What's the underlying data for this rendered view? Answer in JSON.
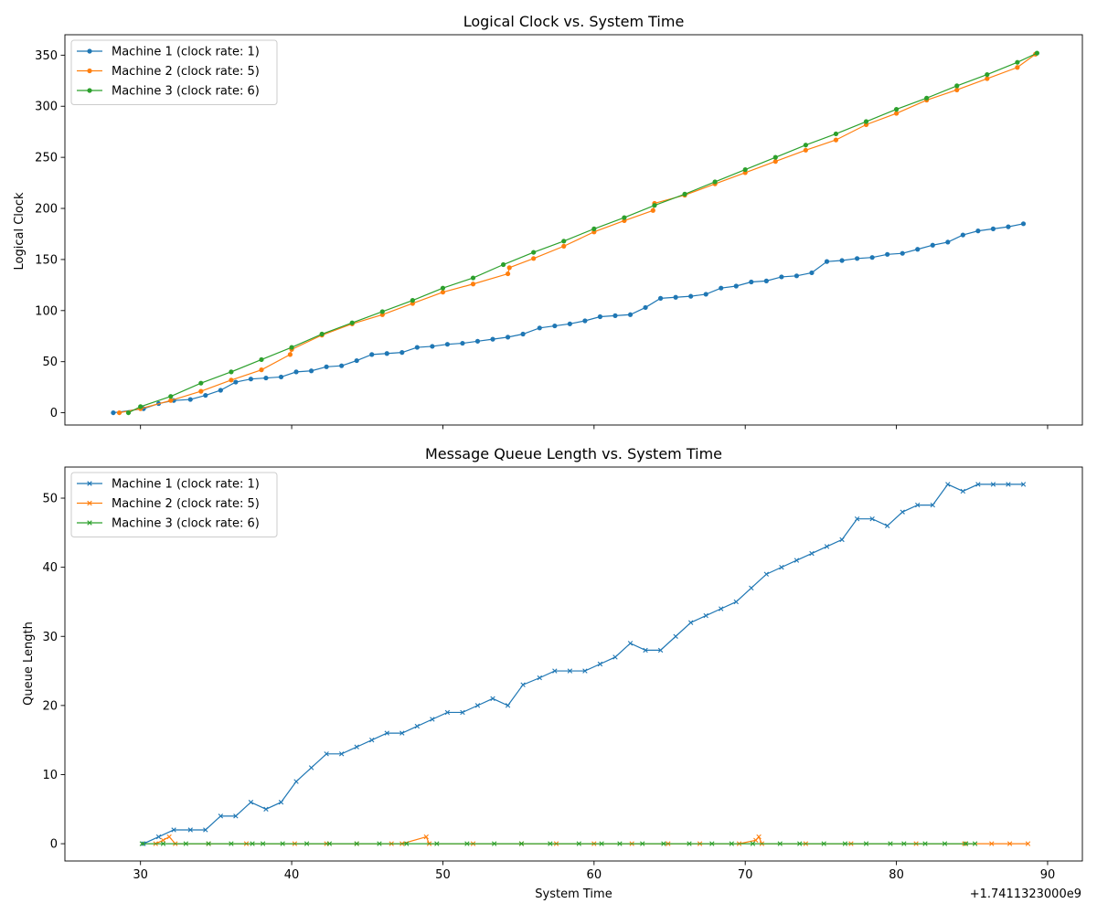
{
  "chart_data": [
    {
      "type": "line",
      "title": "Logical Clock vs. System Time",
      "xlabel": "",
      "ylabel": "Logical Clock",
      "xlim": [
        25,
        92.3
      ],
      "ylim": [
        -12,
        370
      ],
      "xticks": [
        30,
        40,
        50,
        60,
        70,
        80,
        90
      ],
      "xtick_labels_visible": false,
      "yticks": [
        0,
        50,
        100,
        150,
        200,
        250,
        300,
        350
      ],
      "grid": false,
      "legend_position": "top-left",
      "marker": "circle",
      "series": [
        {
          "name": "Machine 1 (clock rate: 1)",
          "color": "#1f77b4",
          "points": [
            [
              28.2,
              0
            ],
            [
              30.2,
              4
            ],
            [
              31.2,
              9
            ],
            [
              32.2,
              12
            ],
            [
              33.3,
              13
            ],
            [
              34.3,
              17
            ],
            [
              35.3,
              22
            ],
            [
              36.3,
              30
            ],
            [
              37.3,
              33
            ],
            [
              38.3,
              34
            ],
            [
              39.3,
              35
            ],
            [
              40.3,
              40
            ],
            [
              41.3,
              41
            ],
            [
              42.3,
              45
            ],
            [
              43.3,
              46
            ],
            [
              44.3,
              51
            ],
            [
              45.3,
              57
            ],
            [
              46.3,
              58
            ],
            [
              47.3,
              59
            ],
            [
              48.3,
              64
            ],
            [
              49.3,
              65
            ],
            [
              50.3,
              67
            ],
            [
              51.3,
              68
            ],
            [
              52.3,
              70
            ],
            [
              53.3,
              72
            ],
            [
              54.3,
              74
            ],
            [
              55.3,
              77
            ],
            [
              56.4,
              83
            ],
            [
              57.4,
              85
            ],
            [
              58.4,
              87
            ],
            [
              59.4,
              90
            ],
            [
              60.4,
              94
            ],
            [
              61.4,
              95
            ],
            [
              62.4,
              96
            ],
            [
              63.4,
              103
            ],
            [
              64.4,
              112
            ],
            [
              65.4,
              113
            ],
            [
              66.4,
              114
            ],
            [
              67.4,
              116
            ],
            [
              68.4,
              122
            ],
            [
              69.4,
              124
            ],
            [
              70.4,
              128
            ],
            [
              71.4,
              129
            ],
            [
              72.4,
              133
            ],
            [
              73.4,
              134
            ],
            [
              74.4,
              137
            ],
            [
              75.4,
              148
            ],
            [
              76.4,
              149
            ],
            [
              77.4,
              151
            ],
            [
              78.4,
              152
            ],
            [
              79.4,
              155
            ],
            [
              80.4,
              156
            ],
            [
              81.4,
              160
            ],
            [
              82.4,
              164
            ],
            [
              83.4,
              167
            ],
            [
              84.4,
              174
            ],
            [
              85.4,
              178
            ],
            [
              86.4,
              180
            ],
            [
              87.4,
              182
            ],
            [
              88.4,
              185
            ]
          ]
        },
        {
          "name": "Machine 2 (clock rate: 5)",
          "color": "#ff7f0e",
          "points": [
            [
              28.6,
              0
            ],
            [
              30,
              4
            ],
            [
              32,
              12
            ],
            [
              34,
              21
            ],
            [
              36,
              32
            ],
            [
              38,
              42
            ],
            [
              39.9,
              57
            ],
            [
              40,
              62
            ],
            [
              42,
              76
            ],
            [
              44,
              87
            ],
            [
              46,
              96
            ],
            [
              48,
              107
            ],
            [
              50,
              118
            ],
            [
              52,
              126
            ],
            [
              54.3,
              136
            ],
            [
              54.4,
              142
            ],
            [
              56,
              151
            ],
            [
              58,
              163
            ],
            [
              60,
              177
            ],
            [
              62,
              188
            ],
            [
              63.9,
              198
            ],
            [
              64,
              205
            ],
            [
              66,
              213
            ],
            [
              68,
              224
            ],
            [
              70,
              235
            ],
            [
              72,
              246
            ],
            [
              74,
              257
            ],
            [
              76,
              267
            ],
            [
              78,
              282
            ],
            [
              80,
              293
            ],
            [
              82,
              306
            ],
            [
              84,
              316
            ],
            [
              86,
              327
            ],
            [
              88,
              338
            ],
            [
              89.2,
              351
            ]
          ]
        },
        {
          "name": "Machine 3 (clock rate: 6)",
          "color": "#2ca02c",
          "points": [
            [
              29.2,
              0
            ],
            [
              30,
              6
            ],
            [
              32,
              16
            ],
            [
              34,
              29
            ],
            [
              36,
              40
            ],
            [
              38,
              52
            ],
            [
              40,
              64
            ],
            [
              42,
              77
            ],
            [
              44,
              88
            ],
            [
              46,
              99
            ],
            [
              48,
              110
            ],
            [
              50,
              122
            ],
            [
              52,
              132
            ],
            [
              54,
              145
            ],
            [
              56,
              157
            ],
            [
              58,
              168
            ],
            [
              60,
              180
            ],
            [
              62,
              191
            ],
            [
              64,
              203
            ],
            [
              66,
              214
            ],
            [
              68,
              226
            ],
            [
              70,
              238
            ],
            [
              72,
              250
            ],
            [
              74,
              262
            ],
            [
              76,
              273
            ],
            [
              78,
              285
            ],
            [
              80,
              297
            ],
            [
              82,
              308
            ],
            [
              84,
              320
            ],
            [
              86,
              331
            ],
            [
              88,
              343
            ],
            [
              89.3,
              352
            ]
          ]
        }
      ]
    },
    {
      "type": "line",
      "title": "Message Queue Length vs. System Time",
      "xlabel": "System Time",
      "ylabel": "Queue Length",
      "xlim": [
        25,
        92.3
      ],
      "ylim": [
        -2.5,
        54.5
      ],
      "xticks": [
        30,
        40,
        50,
        60,
        70,
        80,
        90
      ],
      "yticks": [
        0,
        10,
        20,
        30,
        40,
        50
      ],
      "x_offset_label": "+1.7411323000e9",
      "grid": false,
      "legend_position": "top-left",
      "marker": "x",
      "series": [
        {
          "name": "Machine 1 (clock rate: 1)",
          "color": "#1f77b4",
          "points": [
            [
              30.2,
              0
            ],
            [
              31.2,
              1
            ],
            [
              32.2,
              2
            ],
            [
              33.3,
              2
            ],
            [
              34.3,
              2
            ],
            [
              35.3,
              4
            ],
            [
              36.3,
              4
            ],
            [
              37.3,
              6
            ],
            [
              38.3,
              5
            ],
            [
              39.3,
              6
            ],
            [
              40.3,
              9
            ],
            [
              41.3,
              11
            ],
            [
              42.3,
              13
            ],
            [
              43.3,
              13
            ],
            [
              44.3,
              14
            ],
            [
              45.3,
              15
            ],
            [
              46.3,
              16
            ],
            [
              47.3,
              16
            ],
            [
              48.3,
              17
            ],
            [
              49.3,
              18
            ],
            [
              50.3,
              19
            ],
            [
              51.3,
              19
            ],
            [
              52.3,
              20
            ],
            [
              53.3,
              21
            ],
            [
              54.3,
              20
            ],
            [
              55.3,
              23
            ],
            [
              56.4,
              24
            ],
            [
              57.4,
              25
            ],
            [
              58.4,
              25
            ],
            [
              59.4,
              25
            ],
            [
              60.4,
              26
            ],
            [
              61.4,
              27
            ],
            [
              62.4,
              29
            ],
            [
              63.4,
              28
            ],
            [
              64.4,
              28
            ],
            [
              65.4,
              30
            ],
            [
              66.4,
              32
            ],
            [
              67.4,
              33
            ],
            [
              68.4,
              34
            ],
            [
              69.4,
              35
            ],
            [
              70.4,
              37
            ],
            [
              71.4,
              39
            ],
            [
              72.4,
              40
            ],
            [
              73.4,
              41
            ],
            [
              74.4,
              42
            ],
            [
              75.4,
              43
            ],
            [
              76.4,
              44
            ],
            [
              77.4,
              47
            ],
            [
              78.4,
              47
            ],
            [
              79.4,
              46
            ],
            [
              80.4,
              48
            ],
            [
              81.4,
              49
            ],
            [
              82.4,
              49
            ],
            [
              83.4,
              52
            ],
            [
              84.4,
              51
            ],
            [
              85.4,
              52
            ],
            [
              86.4,
              52
            ],
            [
              87.4,
              52
            ],
            [
              88.4,
              52
            ]
          ]
        },
        {
          "name": "Machine 2 (clock rate: 5)",
          "color": "#ff7f0e",
          "points": [
            [
              31,
              0
            ],
            [
              31.5,
              0.5
            ],
            [
              31.9,
              1
            ],
            [
              32.3,
              0
            ],
            [
              34.5,
              0
            ],
            [
              37,
              0
            ],
            [
              40.2,
              0
            ],
            [
              42.3,
              0
            ],
            [
              44.3,
              0
            ],
            [
              46.6,
              0
            ],
            [
              47.3,
              0
            ],
            [
              48.9,
              1
            ],
            [
              49.1,
              0
            ],
            [
              52,
              0
            ],
            [
              55.2,
              0
            ],
            [
              57.5,
              0
            ],
            [
              60,
              0
            ],
            [
              62.5,
              0
            ],
            [
              64.9,
              0
            ],
            [
              67,
              0
            ],
            [
              69.6,
              0
            ],
            [
              70.7,
              0.5
            ],
            [
              70.9,
              1
            ],
            [
              71.1,
              0
            ],
            [
              74,
              0
            ],
            [
              77,
              0
            ],
            [
              81.3,
              0
            ],
            [
              84.5,
              0
            ],
            [
              86.3,
              0
            ],
            [
              87.5,
              0
            ],
            [
              88.7,
              0
            ]
          ]
        },
        {
          "name": "Machine 3 (clock rate: 6)",
          "color": "#2ca02c",
          "points": [
            [
              30.1,
              0
            ],
            [
              31.5,
              0
            ],
            [
              33,
              0
            ],
            [
              34.5,
              0
            ],
            [
              36,
              0
            ],
            [
              37.4,
              0
            ],
            [
              38.1,
              0
            ],
            [
              39.4,
              0
            ],
            [
              41,
              0
            ],
            [
              42.5,
              0
            ],
            [
              44.3,
              0
            ],
            [
              45.8,
              0
            ],
            [
              47.6,
              0
            ],
            [
              49.6,
              0
            ],
            [
              51.6,
              0
            ],
            [
              53.4,
              0
            ],
            [
              55.2,
              0
            ],
            [
              57.1,
              0
            ],
            [
              59,
              0
            ],
            [
              60.5,
              0
            ],
            [
              61.7,
              0
            ],
            [
              63.2,
              0
            ],
            [
              64.6,
              0
            ],
            [
              66.3,
              0
            ],
            [
              67.8,
              0
            ],
            [
              69.1,
              0
            ],
            [
              70.5,
              0
            ],
            [
              72.3,
              0
            ],
            [
              73.6,
              0
            ],
            [
              75.2,
              0
            ],
            [
              76.6,
              0
            ],
            [
              78,
              0
            ],
            [
              79.6,
              0
            ],
            [
              80.5,
              0
            ],
            [
              81.9,
              0
            ],
            [
              83.2,
              0
            ],
            [
              84.6,
              0
            ],
            [
              85.2,
              0
            ]
          ]
        }
      ]
    }
  ]
}
